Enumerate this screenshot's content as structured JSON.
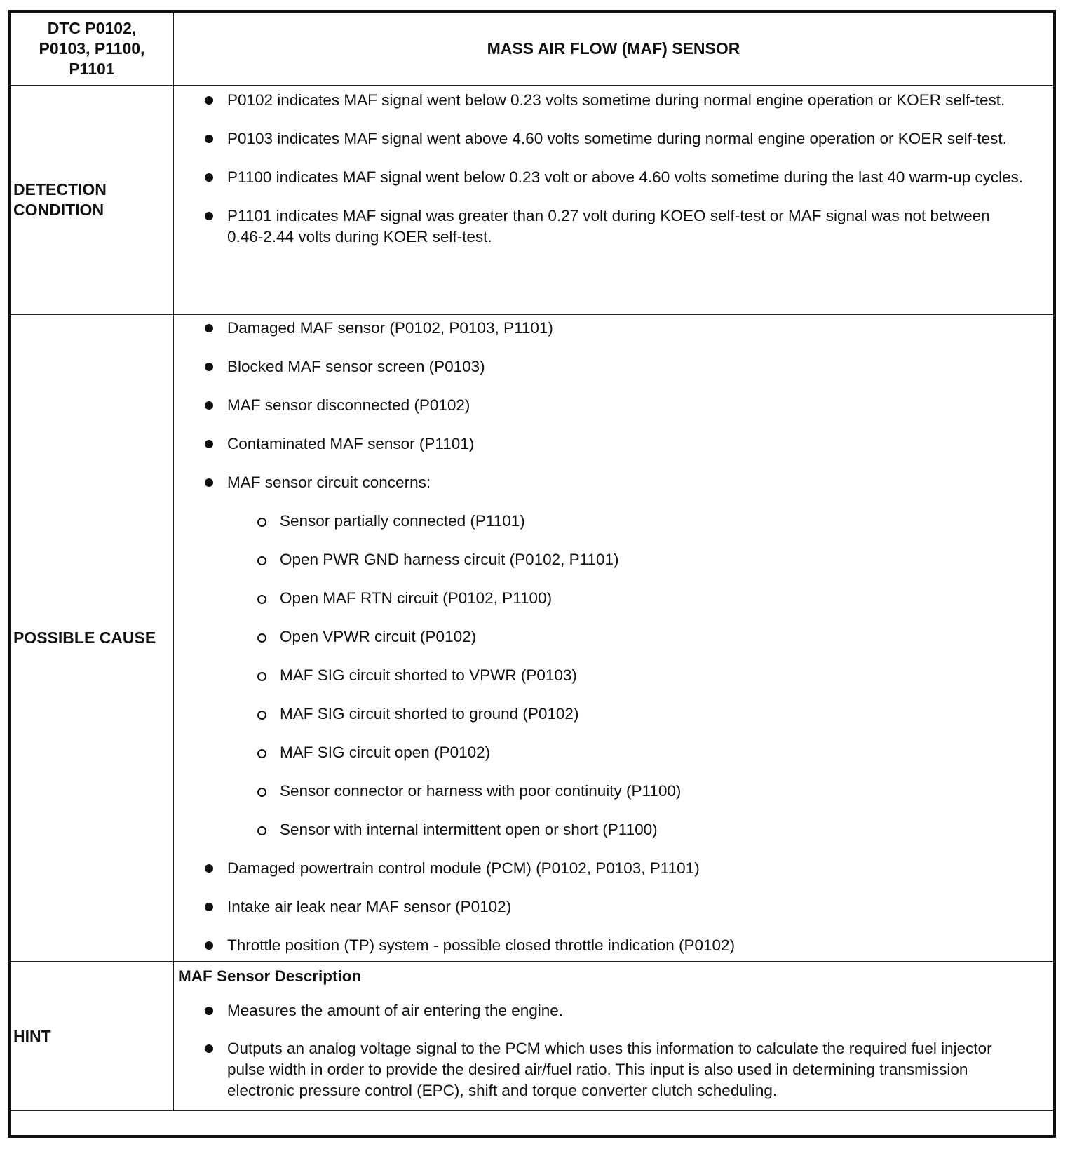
{
  "header": {
    "dtc_label": "DTC P0102, P0103, P1100, P1101",
    "title": "MASS AIR FLOW (MAF) SENSOR"
  },
  "detection": {
    "label": "DETECTION CONDITION",
    "items": [
      "P0102 indicates MAF signal went below 0.23 volts sometime during normal engine operation or KOER self-test.",
      "P0103 indicates MAF signal went above 4.60 volts sometime during normal engine operation or KOER self-test.",
      "P1100 indicates MAF signal went below 0.23 volt or above 4.60 volts sometime during the last 40 warm-up cycles.",
      "P1101 indicates MAF signal was greater than 0.27 volt during KOEO self-test or MAF signal was not between 0.46-2.44 volts during KOER self-test."
    ]
  },
  "cause": {
    "label": "POSSIBLE CAUSE",
    "items": [
      {
        "text": "Damaged MAF sensor (P0102, P0103, P1101)",
        "level": 1
      },
      {
        "text": "Blocked MAF sensor screen (P0103)",
        "level": 1
      },
      {
        "text": "MAF sensor disconnected (P0102)",
        "level": 1
      },
      {
        "text": "Contaminated MAF sensor (P1101)",
        "level": 1
      },
      {
        "text": "MAF sensor circuit concerns:",
        "level": 1
      },
      {
        "text": "Sensor partially connected (P1101)",
        "level": 2
      },
      {
        "text": "Open PWR GND harness circuit (P0102, P1101)",
        "level": 2
      },
      {
        "text": "Open MAF RTN circuit (P0102, P1100)",
        "level": 2
      },
      {
        "text": "Open VPWR circuit (P0102)",
        "level": 2
      },
      {
        "text": "MAF SIG circuit shorted to VPWR (P0103)",
        "level": 2
      },
      {
        "text": "MAF SIG circuit shorted to ground (P0102)",
        "level": 2
      },
      {
        "text": "MAF SIG circuit open (P0102)",
        "level": 2
      },
      {
        "text": "Sensor connector or harness with poor continuity (P1100)",
        "level": 2
      },
      {
        "text": "Sensor with internal intermittent open or short (P1100)",
        "level": 2
      },
      {
        "text": "Damaged powertrain control module (PCM) (P0102, P0103, P1101)",
        "level": 1
      },
      {
        "text": "Intake air leak near MAF sensor (P0102)",
        "level": 1
      },
      {
        "text": "Throttle position (TP) system - possible closed throttle indication (P0102)",
        "level": 1
      }
    ]
  },
  "hint": {
    "label": "HINT",
    "title": "MAF Sensor Description",
    "items": [
      "Measures the amount of air entering the engine.",
      "Outputs an analog voltage signal to the PCM which uses this information to calculate the required fuel injector pulse width in order to provide the desired air/fuel ratio. This input is also used in determining transmission electronic pressure control (EPC), shift and torque converter clutch scheduling."
    ]
  }
}
